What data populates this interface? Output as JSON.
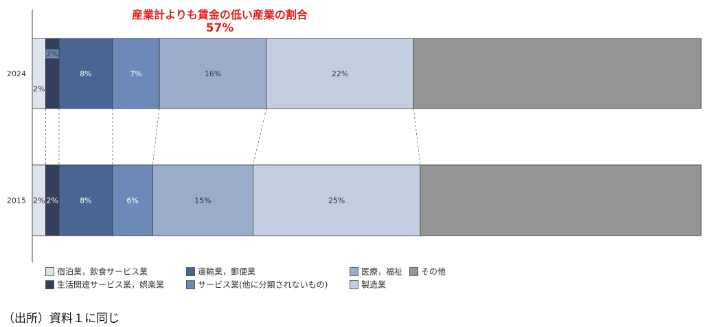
{
  "chart_data": {
    "type": "bar",
    "orientation": "horizontal",
    "stacked": true,
    "percent": true,
    "categories": [
      "2024",
      "2015"
    ],
    "series": [
      {
        "name": "宿泊業，飲食サービス業",
        "values": [
          2,
          2
        ],
        "labels": [
          "2%",
          "2%"
        ],
        "color": "#dfe3ee"
      },
      {
        "name": "生活関連サービス業，娯楽業",
        "values": [
          2,
          2
        ],
        "labels": [
          "2%",
          "2%"
        ],
        "color": "#333f5c"
      },
      {
        "name": "運輸業，郵便業",
        "values": [
          8,
          8
        ],
        "labels": [
          "8%",
          "8%"
        ],
        "color": "#4a6593"
      },
      {
        "name": "サービス業(他に分類されないもの)",
        "values": [
          7,
          6
        ],
        "labels": [
          "7%",
          "6%"
        ],
        "color": "#6d89b8"
      },
      {
        "name": "医療，福祉",
        "values": [
          16,
          15
        ],
        "labels": [
          "16%",
          "15%"
        ],
        "color": "#99adcb"
      },
      {
        "name": "製造業",
        "values": [
          22,
          25
        ],
        "labels": [
          "22%",
          "25%"
        ],
        "color": "#c2cde0"
      },
      {
        "name": "その他",
        "values": [
          43,
          42
        ],
        "labels": [
          "",
          ""
        ],
        "color": "#959595"
      }
    ],
    "annotation": {
      "text": "産業計よりも賃金の低い産業の割合",
      "value": "57%"
    },
    "legend": "bottom",
    "xlim": [
      0,
      100
    ]
  },
  "source_note": "（出所）資料１に同じ"
}
